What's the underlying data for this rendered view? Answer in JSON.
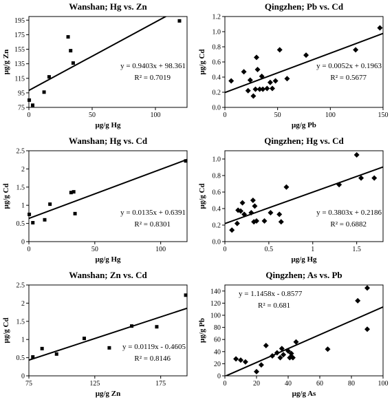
{
  "chart_data": [
    {
      "type": "scatter",
      "title": "Wanshan; Hg vs. Zn",
      "xlabel": "μg/g Hg",
      "ylabel": "μg/g Zn",
      "xlim": [
        0,
        125
      ],
      "ylim": [
        75,
        200
      ],
      "xticks": [
        "0",
        "50",
        "100"
      ],
      "yticks": [
        "75",
        "95",
        "115",
        "135",
        "155",
        "175",
        "195"
      ],
      "xtick_values": [
        0,
        50,
        100
      ],
      "ytick_values": [
        75,
        95,
        115,
        135,
        155,
        175,
        195
      ],
      "marker": "square",
      "points": [
        [
          0.3,
          85
        ],
        [
          3,
          78
        ],
        [
          12,
          96
        ],
        [
          16,
          117
        ],
        [
          31,
          172
        ],
        [
          33,
          153
        ],
        [
          35,
          136
        ],
        [
          119,
          194
        ]
      ],
      "trendline": {
        "slope": 0.9403,
        "intercept": 98.361
      },
      "equation": "y = 0.9403x + 98.361",
      "r2": "R² = 0.7019",
      "eq_pos": "middle-right"
    },
    {
      "type": "scatter",
      "title": "Qingzhen; Pb vs. Cd",
      "xlabel": "μg/g Pb",
      "ylabel": "μg/g Cd",
      "xlim": [
        0,
        150
      ],
      "ylim": [
        0,
        1.2
      ],
      "xticks": [
        "0",
        "50",
        "100",
        "150"
      ],
      "yticks": [
        "0.0",
        "0.2",
        "0.4",
        "0.6",
        "0.8",
        "1.0",
        "1.2"
      ],
      "xtick_values": [
        0,
        50,
        100,
        150
      ],
      "ytick_values": [
        0,
        0.2,
        0.4,
        0.6,
        0.8,
        1.0,
        1.2
      ],
      "marker": "diamond",
      "points": [
        [
          6,
          0.35
        ],
        [
          18,
          0.47
        ],
        [
          22,
          0.22
        ],
        [
          24,
          0.36
        ],
        [
          27,
          0.15
        ],
        [
          29,
          0.24
        ],
        [
          30,
          0.66
        ],
        [
          31,
          0.5
        ],
        [
          33,
          0.24
        ],
        [
          35,
          0.41
        ],
        [
          36,
          0.24
        ],
        [
          40,
          0.25
        ],
        [
          43,
          0.33
        ],
        [
          45,
          0.25
        ],
        [
          48,
          0.35
        ],
        [
          52,
          0.76
        ],
        [
          59,
          0.38
        ],
        [
          77,
          0.69
        ],
        [
          124,
          0.76
        ],
        [
          147,
          1.05
        ]
      ],
      "trendline": {
        "slope": 0.0052,
        "intercept": 0.1963
      },
      "equation": "y = 0.0052x + 0.1963",
      "r2": "R² = 0.5677",
      "eq_pos": "middle-right"
    },
    {
      "type": "scatter",
      "title": "Wanshan; Hg vs. Cd",
      "xlabel": "μg/g Hg",
      "ylabel": "μg/g Cd",
      "xlim": [
        0,
        120
      ],
      "ylim": [
        0,
        2.5
      ],
      "xticks": [
        "0",
        "50",
        "100"
      ],
      "yticks": [
        "0",
        "0.5",
        "1",
        "1.5",
        "2",
        "2.5"
      ],
      "xtick_values": [
        0,
        50,
        100
      ],
      "ytick_values": [
        0,
        0.5,
        1,
        1.5,
        2,
        2.5
      ],
      "marker": "square",
      "points": [
        [
          0.3,
          0.75
        ],
        [
          3,
          0.52
        ],
        [
          12,
          0.6
        ],
        [
          16,
          1.03
        ],
        [
          32,
          1.35
        ],
        [
          34,
          1.37
        ],
        [
          35,
          0.77
        ],
        [
          119,
          2.22
        ]
      ],
      "trendline": {
        "slope": 0.0135,
        "intercept": 0.6391
      },
      "equation": "y = 0.0135x + 0.6391",
      "r2": "R² = 0.8301",
      "eq_pos": "lower-right"
    },
    {
      "type": "scatter",
      "title": "Qingzhen; Hg vs. Cd",
      "xlabel": "μg/g Hg",
      "ylabel": "μg/g Cd",
      "xlim": [
        0,
        1.8
      ],
      "ylim": [
        0,
        1.1
      ],
      "xticks": [
        "0",
        "0.5",
        "1",
        "1.5"
      ],
      "yticks": [
        "0.0",
        "0.2",
        "0.4",
        "0.6",
        "0.8",
        "1.0"
      ],
      "xtick_values": [
        0,
        0.5,
        1,
        1.5
      ],
      "ytick_values": [
        0,
        0.2,
        0.4,
        0.6,
        0.8,
        1.0
      ],
      "marker": "diamond",
      "points": [
        [
          0.08,
          0.14
        ],
        [
          0.14,
          0.22
        ],
        [
          0.15,
          0.38
        ],
        [
          0.18,
          0.37
        ],
        [
          0.2,
          0.47
        ],
        [
          0.22,
          0.33
        ],
        [
          0.3,
          0.35
        ],
        [
          0.32,
          0.5
        ],
        [
          0.33,
          0.24
        ],
        [
          0.34,
          0.43
        ],
        [
          0.36,
          0.25
        ],
        [
          0.45,
          0.25
        ],
        [
          0.52,
          0.35
        ],
        [
          0.62,
          0.33
        ],
        [
          0.64,
          0.24
        ],
        [
          0.7,
          0.66
        ],
        [
          1.3,
          0.69
        ],
        [
          1.5,
          1.05
        ],
        [
          1.55,
          0.77
        ],
        [
          1.7,
          0.77
        ]
      ],
      "trendline": {
        "slope": 0.3803,
        "intercept": 0.2186
      },
      "equation": "y = 0.3803x + 0.2186",
      "r2": "R² = 0.6882",
      "eq_pos": "lower-right"
    },
    {
      "type": "scatter",
      "title": "Wanshan; Zn vs. Cd",
      "xlabel": "μg/g Zn",
      "ylabel": "μg/g Cd",
      "xlim": [
        75,
        195
      ],
      "ylim": [
        0,
        2.5
      ],
      "xticks": [
        "75",
        "125",
        "175"
      ],
      "yticks": [
        "0",
        "0.5",
        "1",
        "1.5",
        "2",
        "2.5"
      ],
      "xtick_values": [
        75,
        125,
        175
      ],
      "ytick_values": [
        0,
        0.5,
        1,
        1.5,
        2,
        2.5
      ],
      "marker": "square",
      "points": [
        [
          78,
          0.52
        ],
        [
          85,
          0.75
        ],
        [
          96,
          0.6
        ],
        [
          117,
          1.03
        ],
        [
          136,
          0.77
        ],
        [
          153,
          1.37
        ],
        [
          172,
          1.35
        ],
        [
          194,
          2.22
        ]
      ],
      "trendline": {
        "slope": 0.0119,
        "intercept": -0.4605
      },
      "equation": "y = 0.0119x - 0.4605",
      "r2": "R² = 0.8146",
      "eq_pos": "lower-right"
    },
    {
      "type": "scatter",
      "title": "Qingzhen; As vs. Pb",
      "xlabel": "μg/g As",
      "ylabel": "μg/g Pb",
      "xlim": [
        0,
        100
      ],
      "ylim": [
        0,
        150
      ],
      "xticks": [
        "0",
        "20",
        "40",
        "60",
        "80",
        "100"
      ],
      "yticks": [
        "0",
        "20",
        "40",
        "60",
        "80",
        "100",
        "120",
        "140"
      ],
      "xtick_values": [
        0,
        20,
        40,
        60,
        80,
        100
      ],
      "ytick_values": [
        0,
        20,
        40,
        60,
        80,
        100,
        120,
        140
      ],
      "marker": "diamond",
      "points": [
        [
          7,
          28
        ],
        [
          10,
          26
        ],
        [
          13,
          23
        ],
        [
          20,
          7
        ],
        [
          23,
          18
        ],
        [
          26,
          50
        ],
        [
          30,
          33
        ],
        [
          33,
          38
        ],
        [
          35,
          30
        ],
        [
          36,
          45
        ],
        [
          37,
          35
        ],
        [
          40,
          41
        ],
        [
          41,
          30
        ],
        [
          42,
          32
        ],
        [
          42,
          37
        ],
        [
          43,
          30
        ],
        [
          45,
          56
        ],
        [
          65,
          44
        ],
        [
          84,
          124
        ],
        [
          90,
          145
        ],
        [
          90,
          77
        ]
      ],
      "trendline": {
        "slope": 1.1458,
        "intercept": -0.8577
      },
      "equation": "y = 1.1458x - 0.8577",
      "r2": "R² = 0.681",
      "eq_pos": "upper-left"
    }
  ]
}
